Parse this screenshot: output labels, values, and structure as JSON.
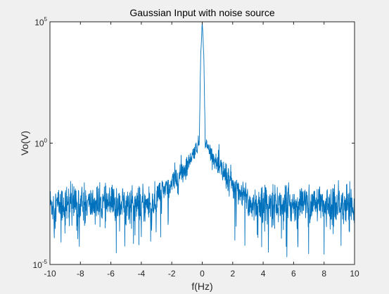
{
  "chart_data": {
    "type": "line",
    "title": "Gaussian Input with noise source",
    "xlabel": "f(Hz)",
    "ylabel": "Vo(V)",
    "xlim": [
      -10,
      10
    ],
    "ylim": [
      1e-05,
      100000.0
    ],
    "yscale": "log",
    "grid": false,
    "xticks": [
      -10,
      -8,
      -6,
      -4,
      -2,
      0,
      2,
      4,
      6,
      8,
      10
    ],
    "xtick_labels": [
      "-10",
      "-8",
      "-6",
      "-4",
      "-2",
      "0",
      "2",
      "4",
      "6",
      "8",
      "10"
    ],
    "yticks": [
      1e-05,
      1,
      100000.0
    ],
    "ytick_labels": [
      {
        "base": "10",
        "exp": "-5"
      },
      {
        "base": "10",
        "exp": "0"
      },
      {
        "base": "10",
        "exp": "5"
      }
    ],
    "series": [
      {
        "color": "#0072BD",
        "envelope": {
          "noise_floor_median": 0.003,
          "noise_floor_min": 2e-05,
          "noise_floor_max": 0.03,
          "skirt_points": [
            [
              -3.0,
              0.006
            ],
            [
              -2.0,
              0.02
            ],
            [
              -1.0,
              0.12
            ],
            [
              -0.5,
              0.5
            ],
            [
              -0.2,
              1.0
            ],
            [
              -0.1,
              5000
            ],
            [
              0,
              90000
            ],
            [
              0.1,
              5000
            ],
            [
              0.2,
              1.0
            ],
            [
              0.5,
              0.5
            ],
            [
              1.0,
              0.12
            ],
            [
              2.0,
              0.02
            ],
            [
              3.0,
              0.006
            ]
          ]
        }
      }
    ]
  },
  "colors": {
    "figure_background": "#f0f0f0",
    "axes_background": "#ffffff",
    "axes_color": "#262626",
    "line_color": "#0072BD"
  }
}
